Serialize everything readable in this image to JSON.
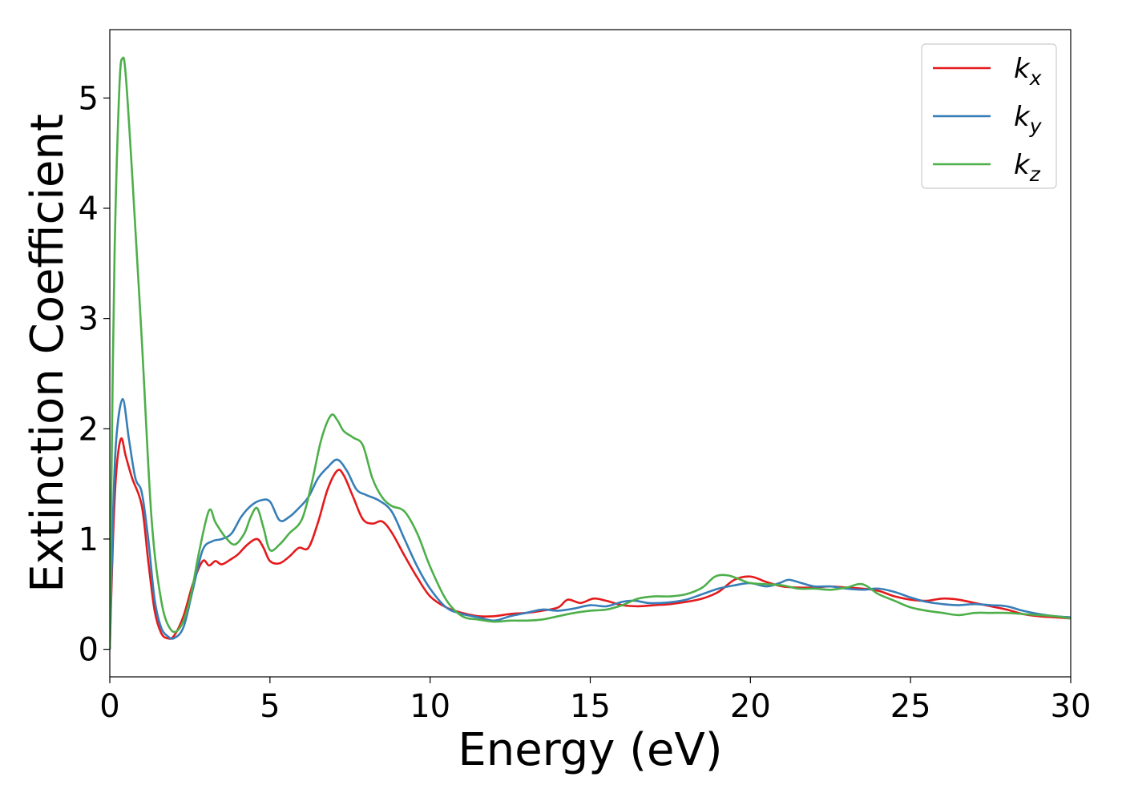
{
  "chart_data": {
    "type": "line",
    "title": "",
    "xlabel": "Energy (eV)",
    "ylabel": "Extinction Coefficient",
    "xlim": [
      0,
      30
    ],
    "ylim": [
      -0.25,
      5.62
    ],
    "xticks": [
      0,
      5,
      10,
      15,
      20,
      25,
      30
    ],
    "yticks": [
      0,
      1,
      2,
      3,
      4,
      5
    ],
    "grid": false,
    "legend_position": "top-right",
    "series": [
      {
        "name": "k",
        "subscript": "x",
        "color": "#e41a1c",
        "x": [
          0,
          0.1,
          0.2,
          0.35,
          0.5,
          0.7,
          1.0,
          1.2,
          1.4,
          1.6,
          1.8,
          2.0,
          2.3,
          2.6,
          2.9,
          3.1,
          3.3,
          3.5,
          3.8,
          4.0,
          4.3,
          4.6,
          4.8,
          5.0,
          5.3,
          5.6,
          5.9,
          6.2,
          6.5,
          6.8,
          7.1,
          7.3,
          7.6,
          7.9,
          8.2,
          8.5,
          8.8,
          9.2,
          9.6,
          10.0,
          10.5,
          11.0,
          11.5,
          12.0,
          12.5,
          13.0,
          13.5,
          14.0,
          14.3,
          14.7,
          15.1,
          15.5,
          16.0,
          16.5,
          17.0,
          17.5,
          18.0,
          18.5,
          19.0,
          19.5,
          20.0,
          20.5,
          21.0,
          21.5,
          22.0,
          22.5,
          23.0,
          23.5,
          24.0,
          24.5,
          25.0,
          25.5,
          26.0,
          26.5,
          27.0,
          27.5,
          28.0,
          28.5,
          29.0,
          29.5,
          30.0
        ],
        "values": [
          0.0,
          1.0,
          1.6,
          1.91,
          1.75,
          1.55,
          1.3,
          0.8,
          0.35,
          0.15,
          0.1,
          0.12,
          0.3,
          0.6,
          0.8,
          0.76,
          0.8,
          0.77,
          0.82,
          0.86,
          0.95,
          1.0,
          0.92,
          0.8,
          0.78,
          0.84,
          0.92,
          0.92,
          1.15,
          1.45,
          1.62,
          1.58,
          1.38,
          1.18,
          1.14,
          1.16,
          1.06,
          0.85,
          0.65,
          0.48,
          0.38,
          0.33,
          0.3,
          0.3,
          0.32,
          0.33,
          0.35,
          0.38,
          0.45,
          0.42,
          0.46,
          0.44,
          0.4,
          0.39,
          0.4,
          0.41,
          0.43,
          0.46,
          0.52,
          0.63,
          0.66,
          0.61,
          0.57,
          0.56,
          0.56,
          0.57,
          0.56,
          0.55,
          0.53,
          0.48,
          0.45,
          0.44,
          0.46,
          0.45,
          0.42,
          0.39,
          0.36,
          0.32,
          0.3,
          0.29,
          0.28
        ]
      },
      {
        "name": "k",
        "subscript": "y",
        "color": "#377eb8",
        "x": [
          0,
          0.1,
          0.2,
          0.4,
          0.6,
          0.8,
          1.0,
          1.2,
          1.4,
          1.6,
          1.8,
          2.0,
          2.3,
          2.6,
          2.9,
          3.2,
          3.5,
          3.8,
          4.1,
          4.4,
          4.7,
          5.0,
          5.3,
          5.6,
          5.9,
          6.2,
          6.5,
          6.8,
          7.1,
          7.4,
          7.7,
          8.0,
          8.4,
          8.8,
          9.2,
          9.6,
          10.0,
          10.5,
          11.0,
          11.5,
          12.0,
          12.5,
          13.0,
          13.5,
          14.0,
          14.5,
          15.0,
          15.5,
          16.0,
          16.4,
          16.8,
          17.2,
          17.6,
          18.0,
          18.5,
          19.0,
          19.5,
          20.0,
          20.5,
          20.9,
          21.2,
          21.6,
          22.0,
          22.5,
          23.0,
          23.5,
          24.0,
          24.5,
          25.0,
          25.5,
          26.0,
          26.5,
          27.0,
          27.5,
          28.0,
          28.5,
          29.0,
          29.5,
          30.0
        ],
        "values": [
          0.0,
          1.2,
          1.9,
          2.27,
          1.9,
          1.55,
          1.42,
          1.0,
          0.45,
          0.2,
          0.12,
          0.1,
          0.2,
          0.55,
          0.9,
          0.98,
          1.0,
          1.05,
          1.2,
          1.3,
          1.35,
          1.34,
          1.17,
          1.2,
          1.28,
          1.38,
          1.55,
          1.65,
          1.72,
          1.62,
          1.45,
          1.4,
          1.35,
          1.25,
          1.0,
          0.75,
          0.55,
          0.38,
          0.32,
          0.29,
          0.26,
          0.3,
          0.33,
          0.36,
          0.35,
          0.37,
          0.4,
          0.39,
          0.43,
          0.44,
          0.42,
          0.42,
          0.43,
          0.45,
          0.5,
          0.55,
          0.58,
          0.6,
          0.57,
          0.6,
          0.63,
          0.6,
          0.57,
          0.57,
          0.55,
          0.54,
          0.55,
          0.52,
          0.47,
          0.43,
          0.41,
          0.4,
          0.41,
          0.4,
          0.39,
          0.35,
          0.32,
          0.3,
          0.29
        ]
      },
      {
        "name": "k",
        "subscript": "z",
        "color": "#4daf4a",
        "x": [
          0,
          0.05,
          0.15,
          0.3,
          0.4,
          0.5,
          0.7,
          1.0,
          1.3,
          1.6,
          1.9,
          2.2,
          2.5,
          2.8,
          3.1,
          3.3,
          3.6,
          3.9,
          4.2,
          4.4,
          4.6,
          4.8,
          5.0,
          5.3,
          5.6,
          6.0,
          6.3,
          6.6,
          6.9,
          7.1,
          7.3,
          7.6,
          7.9,
          8.2,
          8.5,
          8.8,
          9.2,
          9.6,
          10.0,
          10.5,
          11.0,
          11.5,
          12.0,
          12.5,
          13.0,
          13.5,
          14.0,
          14.5,
          15.0,
          15.5,
          16.0,
          16.5,
          17.0,
          17.5,
          18.0,
          18.5,
          18.9,
          19.3,
          19.7,
          20.0,
          20.5,
          21.0,
          21.5,
          22.0,
          22.5,
          23.0,
          23.5,
          24.0,
          24.5,
          25.0,
          25.5,
          26.0,
          26.5,
          27.0,
          27.5,
          28.0,
          28.5,
          29.0,
          29.5,
          30.0
        ],
        "values": [
          0.0,
          1.5,
          3.6,
          5.1,
          5.36,
          5.2,
          4.3,
          2.8,
          1.2,
          0.45,
          0.18,
          0.2,
          0.45,
          0.9,
          1.26,
          1.15,
          1.02,
          0.95,
          1.05,
          1.2,
          1.28,
          1.1,
          0.9,
          0.95,
          1.05,
          1.18,
          1.5,
          1.9,
          2.12,
          2.08,
          1.98,
          1.92,
          1.85,
          1.55,
          1.38,
          1.3,
          1.25,
          1.05,
          0.75,
          0.45,
          0.3,
          0.27,
          0.25,
          0.26,
          0.26,
          0.27,
          0.3,
          0.33,
          0.35,
          0.36,
          0.4,
          0.46,
          0.48,
          0.48,
          0.5,
          0.56,
          0.66,
          0.67,
          0.63,
          0.6,
          0.59,
          0.58,
          0.55,
          0.55,
          0.54,
          0.56,
          0.59,
          0.5,
          0.44,
          0.38,
          0.35,
          0.33,
          0.31,
          0.33,
          0.33,
          0.33,
          0.32,
          0.31,
          0.3,
          0.28
        ]
      }
    ]
  }
}
